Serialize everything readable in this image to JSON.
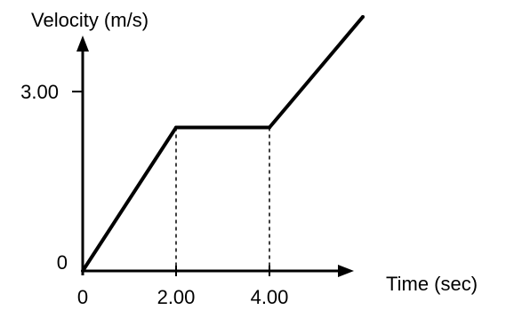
{
  "chart_data": {
    "type": "line",
    "title": "",
    "xlabel": "Time (sec)",
    "ylabel": "Velocity (m/s)",
    "x_ticks": [
      {
        "value": 0,
        "label": "0"
      },
      {
        "value": 2,
        "label": "2.00"
      },
      {
        "value": 4,
        "label": "4.00"
      }
    ],
    "y_ticks": [
      {
        "value": 0,
        "label": "0"
      },
      {
        "value": 3,
        "label": "3.00"
      }
    ],
    "series": [
      {
        "points": [
          {
            "x": 0,
            "y": 0
          },
          {
            "x": 2,
            "y": 2.4
          },
          {
            "x": 4,
            "y": 2.4
          },
          {
            "x": 6,
            "y": 4.25
          }
        ]
      }
    ],
    "reference_lines_x": [
      2,
      4
    ],
    "grid": false,
    "legend": "none",
    "colors": {
      "line": "#000000",
      "axis": "#000000"
    }
  }
}
